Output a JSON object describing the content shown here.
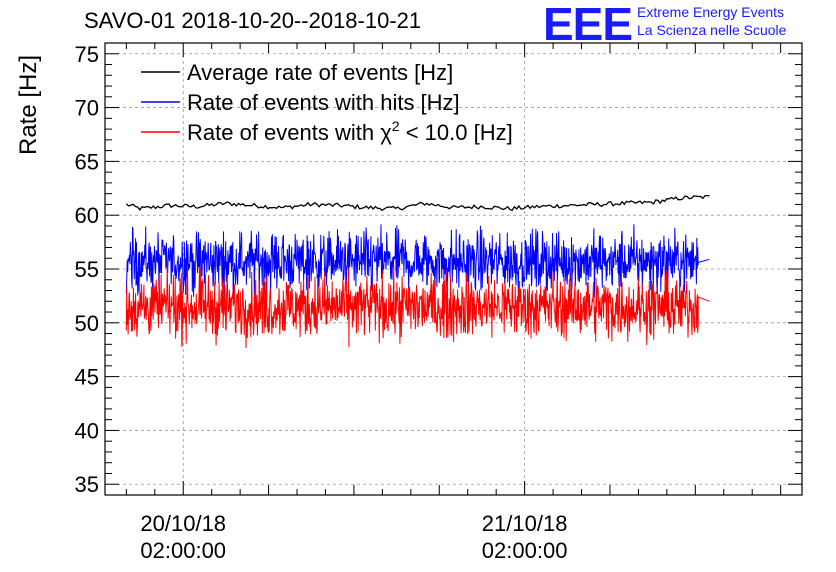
{
  "header": {
    "title": "SAVO-01 2018-10-20--2018-10-21",
    "logo_mark": "EEE",
    "logo_line1": "Extreme Energy Events",
    "logo_line2": "La Scienza nelle Scuole"
  },
  "chart_data": {
    "type": "line",
    "title": "SAVO-01 2018-10-20--2018-10-21",
    "ylabel": "Rate [Hz]",
    "xlabel": "",
    "ylim": [
      34,
      76
    ],
    "yticks": [
      35,
      40,
      45,
      50,
      55,
      60,
      65,
      70,
      75
    ],
    "xlim_hours": [
      -5.5,
      43.5
    ],
    "xticks": [
      {
        "hours": 0,
        "date": "20/10/18",
        "time": "02:00:00"
      },
      {
        "hours": 24,
        "date": "21/10/18",
        "time": "02:00:00"
      }
    ],
    "grid": true,
    "legend_position": "top-left",
    "series": [
      {
        "name": "Average rate of events [Hz]",
        "color": "#000000",
        "kind": "smooth",
        "x_start_hours": -4.0,
        "x_end_hours": 37.0,
        "keypoints": [
          [
            -4.0,
            61.0
          ],
          [
            -3.0,
            60.6
          ],
          [
            -1.0,
            60.9
          ],
          [
            1.0,
            60.8
          ],
          [
            3.0,
            61.1
          ],
          [
            5.0,
            60.9
          ],
          [
            7.0,
            60.7
          ],
          [
            9.0,
            61.0
          ],
          [
            11.0,
            60.9
          ],
          [
            13.0,
            60.7
          ],
          [
            15.0,
            60.6
          ],
          [
            17.0,
            61.1
          ],
          [
            19.0,
            60.7
          ],
          [
            21.0,
            60.8
          ],
          [
            23.0,
            60.6
          ],
          [
            25.0,
            60.8
          ],
          [
            27.0,
            60.9
          ],
          [
            29.0,
            61.0
          ],
          [
            31.0,
            61.1
          ],
          [
            33.0,
            61.2
          ],
          [
            35.0,
            61.6
          ],
          [
            37.0,
            61.7
          ]
        ],
        "noise_amplitude": 0.4,
        "samples": 260
      },
      {
        "name": "Rate of events with hits [Hz]",
        "color": "#0000ff",
        "kind": "noisy",
        "x_start_hours": -4.0,
        "x_end_hours": 37.0,
        "mean": 55.7,
        "noise_amplitude": 3.0,
        "samples": 1300,
        "tail": [
          [
            36.2,
            55.6
          ],
          [
            37.0,
            55.9
          ]
        ]
      },
      {
        "name": "Rate of events with χ² < 10.0 [Hz]",
        "color": "#ff0000",
        "kind": "noisy",
        "x_start_hours": -4.0,
        "x_end_hours": 37.0,
        "mean": 51.5,
        "noise_amplitude": 3.2,
        "samples": 1300,
        "tail": [
          [
            36.2,
            52.4
          ],
          [
            37.0,
            52.0
          ]
        ]
      }
    ],
    "legend": [
      {
        "text": "Average rate of events [Hz]",
        "color": "#000000"
      },
      {
        "text": "Rate of events with hits [Hz]",
        "color": "#0000ff"
      },
      {
        "text_before": "Rate of events with ",
        "symbol": "χ",
        "sup": "2",
        "text_after": " < 10.0 [Hz]",
        "color": "#ff0000"
      }
    ]
  }
}
